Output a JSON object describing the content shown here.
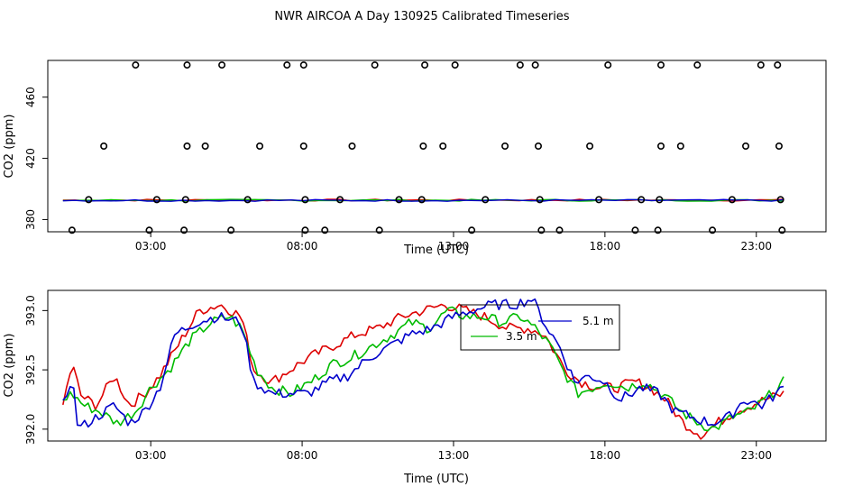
{
  "chart_data": [
    {
      "type": "scatter",
      "title": "NWR AIRCOA A  Day 130925  Calibrated Timeseries",
      "xlabel": "Time (UTC)",
      "ylabel": "CO2 (ppm)",
      "x_ticks": [
        "03:00",
        "08:00",
        "13:00",
        "18:00",
        "23:00"
      ],
      "y_ticks": [
        380,
        420,
        460
      ],
      "xlim": [
        -0.4,
        25.3
      ],
      "ylim": [
        372,
        484
      ],
      "point_series": {
        "name": "calibration standards",
        "color": "#000000",
        "levels": [
          {
            "value": 481,
            "hours": [
              2.5,
              4.2,
              5.35,
              7.5,
              8.05,
              10.4,
              12.05,
              13.05,
              15.2,
              15.7,
              18.1,
              19.85,
              21.05,
              23.15,
              23.7
            ]
          },
          {
            "value": 428,
            "hours": [
              1.45,
              4.2,
              4.8,
              6.6,
              8.05,
              9.65,
              12.0,
              12.65,
              14.7,
              15.8,
              17.5,
              19.85,
              20.5,
              22.65,
              23.75
            ]
          },
          {
            "value": 393,
            "hours": [
              0.95,
              3.2,
              4.15,
              6.2,
              8.1,
              9.25,
              11.2,
              11.95,
              14.05,
              15.85,
              17.8,
              19.2,
              19.8,
              22.2,
              23.8
            ]
          },
          {
            "value": 373,
            "hours": [
              0.4,
              2.95,
              4.1,
              5.65,
              8.1,
              8.75,
              10.55,
              13.6,
              15.9,
              16.5,
              19.0,
              19.75,
              21.55,
              23.85
            ]
          }
        ]
      },
      "line_series": [
        {
          "name": "",
          "color": "#dd0000",
          "value": 392.7
        },
        {
          "name": "",
          "color": "#00bb00",
          "value": 392.6
        },
        {
          "name": "",
          "color": "#0000cc",
          "value": 392.5
        }
      ]
    },
    {
      "type": "line",
      "xlabel": "Time (UTC)",
      "ylabel": "CO2 (ppm)",
      "x_ticks": [
        "03:00",
        "08:00",
        "13:00",
        "18:00",
        "23:00"
      ],
      "y_ticks": [
        392.0,
        392.5,
        393.0
      ],
      "xlim": [
        -0.4,
        25.3
      ],
      "ylim": [
        391.9,
        393.17
      ],
      "legend": {
        "placement": "top-center"
      },
      "series": [
        {
          "name": "",
          "color": "#dd0000",
          "keypoints": [
            [
              0.1,
              392.2
            ],
            [
              0.4,
              392.55
            ],
            [
              0.7,
              392.28
            ],
            [
              1.2,
              392.2
            ],
            [
              1.8,
              392.45
            ],
            [
              2.3,
              392.2
            ],
            [
              2.8,
              392.3
            ],
            [
              3.3,
              392.45
            ],
            [
              4.0,
              392.75
            ],
            [
              4.6,
              393.0
            ],
            [
              5.3,
              393.05
            ],
            [
              6.0,
              392.95
            ],
            [
              6.4,
              392.5
            ],
            [
              7.0,
              392.4
            ],
            [
              7.6,
              392.5
            ],
            [
              8.2,
              392.6
            ],
            [
              9.0,
              392.7
            ],
            [
              9.8,
              392.8
            ],
            [
              10.5,
              392.85
            ],
            [
              11.3,
              392.95
            ],
            [
              12.0,
              393.0
            ],
            [
              12.7,
              393.05
            ],
            [
              13.4,
              393.0
            ],
            [
              14.0,
              392.95
            ],
            [
              14.8,
              392.85
            ],
            [
              15.5,
              392.85
            ],
            [
              16.0,
              392.8
            ],
            [
              16.7,
              392.5
            ],
            [
              17.2,
              392.4
            ],
            [
              17.8,
              392.35
            ],
            [
              18.4,
              392.35
            ],
            [
              19.0,
              392.4
            ],
            [
              19.5,
              392.35
            ],
            [
              20.0,
              392.25
            ],
            [
              20.6,
              392.05
            ],
            [
              21.2,
              391.95
            ],
            [
              21.7,
              392.05
            ],
            [
              22.3,
              392.15
            ],
            [
              22.8,
              392.2
            ],
            [
              23.3,
              392.25
            ],
            [
              23.9,
              392.3
            ]
          ]
        },
        {
          "name": "3.5 m",
          "color": "#00bb00",
          "keypoints": [
            [
              0.1,
              392.25
            ],
            [
              0.4,
              392.3
            ],
            [
              0.8,
              392.2
            ],
            [
              1.3,
              392.15
            ],
            [
              1.9,
              392.05
            ],
            [
              2.5,
              392.15
            ],
            [
              3.0,
              392.35
            ],
            [
              3.6,
              392.5
            ],
            [
              4.3,
              392.75
            ],
            [
              5.0,
              392.9
            ],
            [
              5.6,
              392.95
            ],
            [
              6.0,
              392.85
            ],
            [
              6.5,
              392.5
            ],
            [
              7.0,
              392.35
            ],
            [
              7.6,
              392.3
            ],
            [
              8.3,
              392.4
            ],
            [
              9.0,
              392.55
            ],
            [
              9.6,
              392.6
            ],
            [
              10.3,
              392.7
            ],
            [
              11.0,
              392.8
            ],
            [
              11.6,
              392.9
            ],
            [
              12.2,
              392.85
            ],
            [
              12.8,
              393.0
            ],
            [
              13.4,
              392.95
            ],
            [
              14.0,
              392.95
            ],
            [
              14.6,
              392.9
            ],
            [
              15.2,
              392.95
            ],
            [
              15.7,
              392.85
            ],
            [
              16.2,
              392.7
            ],
            [
              16.6,
              392.5
            ],
            [
              17.1,
              392.3
            ],
            [
              17.6,
              392.35
            ],
            [
              18.1,
              392.4
            ],
            [
              18.7,
              392.35
            ],
            [
              19.3,
              392.4
            ],
            [
              19.9,
              392.3
            ],
            [
              20.5,
              392.15
            ],
            [
              21.1,
              392.05
            ],
            [
              21.6,
              392.0
            ],
            [
              22.2,
              392.1
            ],
            [
              22.8,
              392.15
            ],
            [
              23.3,
              392.25
            ],
            [
              23.9,
              392.4
            ]
          ]
        },
        {
          "name": "5.1 m",
          "color": "#0000cc",
          "keypoints": [
            [
              0.1,
              392.2
            ],
            [
              0.4,
              392.45
            ],
            [
              0.6,
              392.0
            ],
            [
              1.2,
              392.1
            ],
            [
              1.8,
              392.2
            ],
            [
              2.3,
              392.05
            ],
            [
              2.8,
              392.15
            ],
            [
              3.3,
              392.35
            ],
            [
              3.8,
              392.8
            ],
            [
              4.5,
              392.9
            ],
            [
              5.2,
              392.95
            ],
            [
              6.0,
              392.9
            ],
            [
              6.4,
              392.4
            ],
            [
              7.0,
              392.3
            ],
            [
              7.6,
              392.3
            ],
            [
              8.2,
              392.3
            ],
            [
              8.9,
              392.4
            ],
            [
              9.5,
              392.45
            ],
            [
              10.2,
              392.6
            ],
            [
              10.9,
              392.7
            ],
            [
              11.6,
              392.8
            ],
            [
              12.3,
              392.85
            ],
            [
              13.0,
              392.95
            ],
            [
              13.6,
              393.0
            ],
            [
              14.3,
              393.05
            ],
            [
              15.0,
              393.05
            ],
            [
              15.6,
              393.1
            ],
            [
              16.1,
              392.85
            ],
            [
              16.5,
              392.7
            ],
            [
              17.0,
              392.4
            ],
            [
              17.5,
              392.45
            ],
            [
              18.0,
              392.4
            ],
            [
              18.5,
              392.25
            ],
            [
              19.2,
              392.35
            ],
            [
              19.8,
              392.3
            ],
            [
              20.3,
              392.15
            ],
            [
              20.9,
              392.1
            ],
            [
              21.5,
              392.05
            ],
            [
              22.1,
              392.1
            ],
            [
              22.6,
              392.25
            ],
            [
              23.2,
              392.2
            ],
            [
              23.9,
              392.35
            ]
          ]
        }
      ]
    }
  ]
}
